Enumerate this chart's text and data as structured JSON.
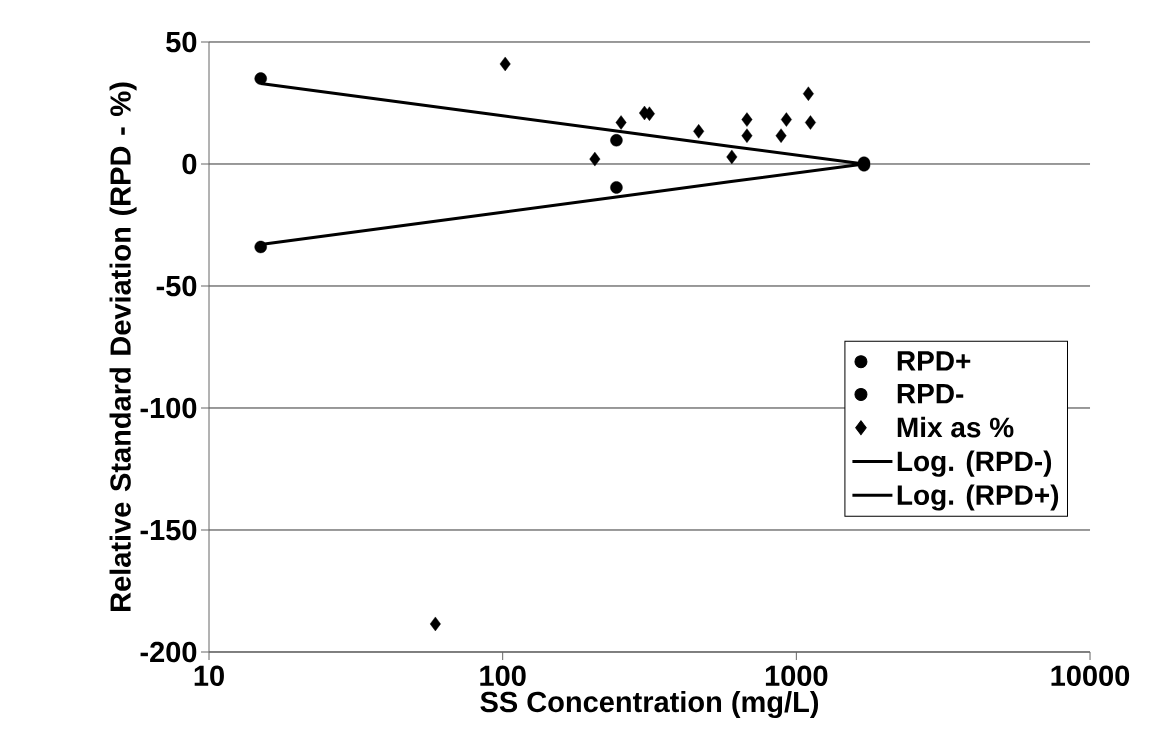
{
  "chart_data": {
    "type": "scatter",
    "xlabel": "SS Concentration (mg/L)",
    "ylabel": "Relative Standard Deviation (RPD - %)",
    "log": "x",
    "xlim": [
      10,
      10000
    ],
    "xticks": [
      10,
      100,
      1000,
      10000
    ],
    "ylim": [
      -200,
      50
    ],
    "yticks": [
      -200,
      -150,
      -100,
      -50,
      0,
      50
    ],
    "grid": "y",
    "legend": "right",
    "series": [
      {
        "name": "RPD+",
        "marker": "circle",
        "color": "#000000",
        "x": [
          15,
          244,
          1700
        ],
        "values": [
          35,
          9.7,
          0.5
        ]
      },
      {
        "name": "RPD-",
        "marker": "circle",
        "color": "#000000",
        "x": [
          15,
          244,
          1700
        ],
        "values": [
          -34,
          -9.6,
          -0.5
        ]
      },
      {
        "name": "Mix as %",
        "marker": "diamond",
        "color": "#000000",
        "x": [
          59,
          102,
          206,
          253,
          304,
          316,
          465,
          603,
          679,
          679,
          887,
          925,
          1099,
          1117
        ],
        "values": [
          -188.5,
          41,
          2,
          17,
          20.9,
          20.6,
          13.4,
          2.9,
          18.2,
          11.6,
          11.6,
          18.2,
          28.8,
          17
        ]
      },
      {
        "name": "Log. (RPD-)",
        "type": "line",
        "marker": "none",
        "line_style": "solid",
        "color": "#000000",
        "x": [
          15,
          100,
          244,
          600,
          1700
        ],
        "values": [
          -33,
          -19.8,
          -13.5,
          -7.2,
          0
        ]
      },
      {
        "name": "Log. (RPD+)",
        "type": "line",
        "marker": "none",
        "line_style": "solid",
        "color": "#000000",
        "x": [
          15,
          100,
          244,
          600,
          1700
        ],
        "values": [
          33,
          19.8,
          13.5,
          7.2,
          0
        ]
      }
    ]
  }
}
